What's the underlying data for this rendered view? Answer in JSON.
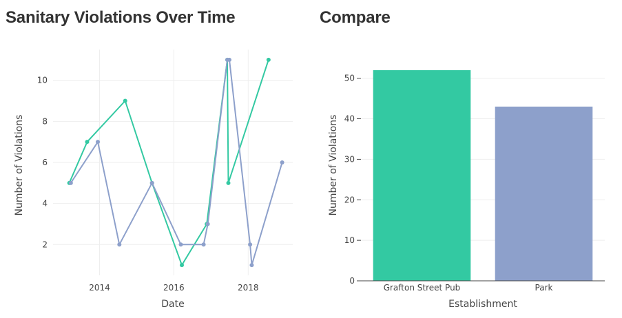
{
  "left_panel": {
    "title": "Sanitary Violations Over Time"
  },
  "right_panel": {
    "title": "Compare"
  },
  "colors": {
    "series1": "#33c9a2",
    "series2": "#8da0cb",
    "axis": "#444444",
    "grid": "#eeeeee"
  },
  "chart_data": [
    {
      "type": "line",
      "title": "Sanitary Violations Over Time",
      "xlabel": "Date",
      "ylabel": "Number of Violations",
      "x_tick_labels": [
        "2014",
        "2016",
        "2018"
      ],
      "y_tick_labels": [
        "2",
        "4",
        "6",
        "8",
        "10"
      ],
      "xlim": [
        "2012-10-01",
        "2019-03-15"
      ],
      "ylim": [
        0.5,
        11.5
      ],
      "grid": true,
      "legend": "none",
      "series": [
        {
          "color": "#33c9a2",
          "points": [
            {
              "x": "2013-03-10",
              "y": 5
            },
            {
              "x": "2013-09-01",
              "y": 7
            },
            {
              "x": "2014-09-10",
              "y": 9
            },
            {
              "x": "2015-06-01",
              "y": 5
            },
            {
              "x": "2016-03-20",
              "y": 1
            },
            {
              "x": "2016-11-20",
              "y": 3
            },
            {
              "x": "2017-06-10",
              "y": 11
            },
            {
              "x": "2017-06-20",
              "y": 5
            },
            {
              "x": "2018-07-20",
              "y": 11
            }
          ]
        },
        {
          "color": "#8da0cb",
          "points": [
            {
              "x": "2013-03-25",
              "y": 5
            },
            {
              "x": "2013-12-15",
              "y": 7
            },
            {
              "x": "2014-07-15",
              "y": 2
            },
            {
              "x": "2015-06-01",
              "y": 5
            },
            {
              "x": "2016-03-10",
              "y": 2
            },
            {
              "x": "2016-10-20",
              "y": 2
            },
            {
              "x": "2016-11-30",
              "y": 3
            },
            {
              "x": "2017-06-10",
              "y": 11
            },
            {
              "x": "2017-06-30",
              "y": 11
            },
            {
              "x": "2018-01-20",
              "y": 2
            },
            {
              "x": "2018-02-05",
              "y": 1
            },
            {
              "x": "2018-12-01",
              "y": 6
            }
          ]
        }
      ]
    },
    {
      "type": "bar",
      "title": "Compare",
      "xlabel": "Establishment",
      "ylabel": "Number of Violations",
      "categories": [
        "Grafton Street Pub",
        "Park"
      ],
      "values": [
        52,
        43
      ],
      "bar_colors": [
        "#33c9a2",
        "#8da0cb"
      ],
      "y_tick_labels": [
        "0",
        "10",
        "20",
        "30",
        "40",
        "50"
      ],
      "ylim": [
        0,
        54.7
      ],
      "grid": true,
      "legend": "none"
    }
  ]
}
